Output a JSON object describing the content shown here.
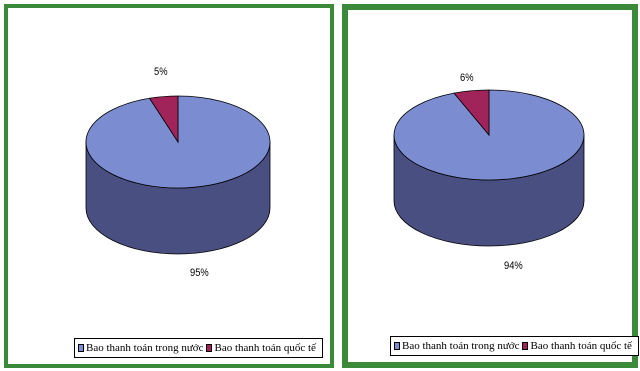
{
  "colors": {
    "frame": "#3a8a3a",
    "domestic": "#7b8cd0",
    "domestic_side": "#4a4f82",
    "international": "#a0235a",
    "international_side": "#6a1540"
  },
  "legend": {
    "domestic": "Bao thanh toán trong nước",
    "international": "Bao thanh toán quốc tế"
  },
  "chart_data": [
    {
      "type": "pie",
      "title": "",
      "categories": [
        "Bao thanh toán trong nước",
        "Bao thanh toán quốc tế"
      ],
      "values": [
        95,
        5
      ],
      "data_labels": [
        "95%",
        "5%"
      ]
    },
    {
      "type": "pie",
      "title": "",
      "categories": [
        "Bao thanh toán trong nước",
        "Bao thanh toán quốc tế"
      ],
      "values": [
        94,
        6
      ],
      "data_labels": [
        "94%",
        "6%"
      ]
    }
  ]
}
